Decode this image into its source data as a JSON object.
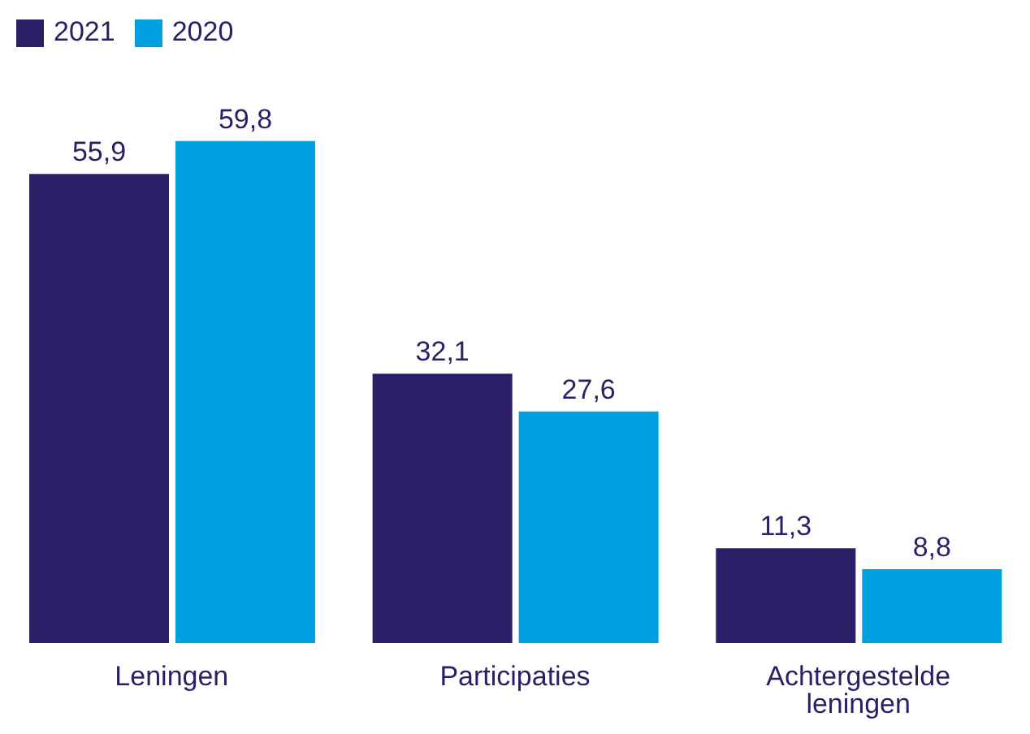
{
  "chart_data": {
    "type": "bar",
    "categories": [
      "Leningen",
      "Participaties",
      "Achtergestelde leningen"
    ],
    "series": [
      {
        "name": "2021",
        "color": "#2a1f66",
        "values": [
          55.9,
          32.1,
          11.3
        ],
        "value_labels": [
          "55,9",
          "32,1",
          "11,3"
        ]
      },
      {
        "name": "2020",
        "color": "#009fdf",
        "values": [
          59.8,
          27.6,
          8.8
        ],
        "value_labels": [
          "59,8",
          "27,6",
          "8,8"
        ]
      }
    ],
    "legend": "top left",
    "grid": false
  }
}
